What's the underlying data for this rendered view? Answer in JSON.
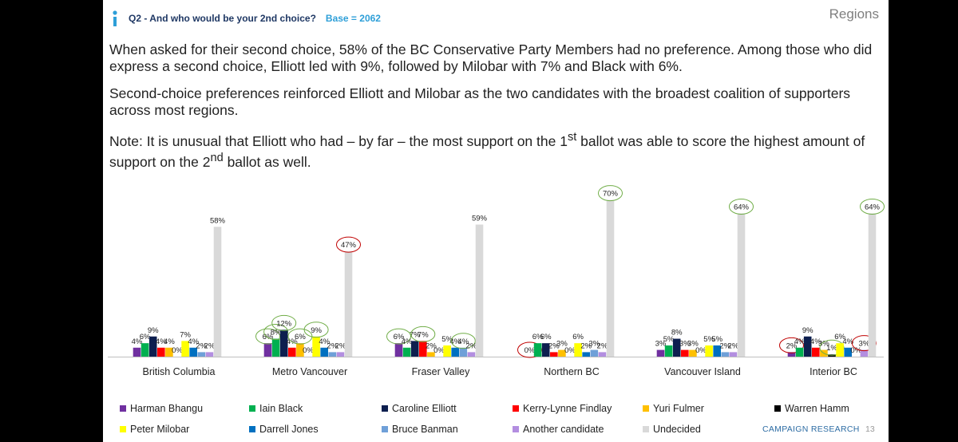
{
  "header": {
    "question": "Q2 - And who would be your 2nd choice?",
    "base": "Base = 2062",
    "section": "Regions"
  },
  "body": {
    "p1": "When asked for their second choice, 58% of the BC Conservative Party Members had no preference.  Among those who did express a second choice, Elliott led with 9%, followed by Milobar with 7% and Black with 6%.",
    "p2": "Second-choice preferences reinforced Elliott and Milobar as the two candidates with the broadest coalition of supporters across most regions.",
    "p3_a": "Note:  It is unusual that Elliott who had – by far – the most support on the 1",
    "p3_sup1": "st",
    "p3_b": " ballot was able to score the highest amount of support on the 2",
    "p3_sup2": "nd",
    "p3_c": " ballot as well."
  },
  "colors": {
    "accent_text": "#1f3864",
    "base_text": "#2e9fd8",
    "circle_green": "#70ad47",
    "circle_red": "#c00000"
  },
  "chart_data": {
    "type": "bar",
    "categories": [
      "British Columbia",
      "Metro Vancouver",
      "Fraser Valley",
      "Northern BC",
      "Vancouver Island",
      "Interior BC"
    ],
    "series": [
      {
        "name": "Harman Bhangu",
        "color": "#7030a0",
        "values": [
          4,
          6,
          6,
          0,
          3,
          2
        ]
      },
      {
        "name": "Iain Black",
        "color": "#00b050",
        "values": [
          6,
          8,
          4,
          6,
          5,
          4
        ]
      },
      {
        "name": "Caroline Elliott",
        "color": "#0d1f4f",
        "values": [
          9,
          12,
          7,
          6,
          8,
          9
        ]
      },
      {
        "name": "Kerry-Lynne Findlay",
        "color": "#ff0000",
        "values": [
          4,
          4,
          7,
          2,
          3,
          4
        ]
      },
      {
        "name": "Yuri Fulmer",
        "color": "#ffc000",
        "values": [
          4,
          6,
          2,
          3,
          3,
          3
        ]
      },
      {
        "name": "Warren Hamm",
        "color": "#000000",
        "values": [
          0,
          0,
          0,
          0,
          0,
          1
        ]
      },
      {
        "name": "Peter Milobar",
        "color": "#ffff00",
        "values": [
          7,
          9,
          5,
          6,
          5,
          6
        ]
      },
      {
        "name": "Darrell Jones",
        "color": "#0070c0",
        "values": [
          4,
          4,
          4,
          2,
          5,
          4
        ]
      },
      {
        "name": "Bruce Banman",
        "color": "#6fa0d8",
        "values": [
          2,
          2,
          4,
          3,
          2,
          0
        ]
      },
      {
        "name": "Another candidate",
        "color": "#b38ee0",
        "values": [
          2,
          2,
          2,
          2,
          2,
          3
        ]
      },
      {
        "name": "Undecided",
        "color": "#d9d9d9",
        "values": [
          58,
          47,
          59,
          70,
          64,
          64
        ]
      }
    ],
    "value_suffix": "%",
    "ylim": [
      0,
      72
    ],
    "highlights": [
      {
        "group": 1,
        "series": 0,
        "color": "green"
      },
      {
        "group": 1,
        "series": 1,
        "color": "green"
      },
      {
        "group": 1,
        "series": 2,
        "color": "green"
      },
      {
        "group": 1,
        "series": 4,
        "color": "green"
      },
      {
        "group": 1,
        "series": 6,
        "color": "green"
      },
      {
        "group": 1,
        "series": 10,
        "color": "red"
      },
      {
        "group": 2,
        "series": 0,
        "color": "green"
      },
      {
        "group": 2,
        "series": 3,
        "color": "green"
      },
      {
        "group": 2,
        "series": 8,
        "color": "green"
      },
      {
        "group": 3,
        "series": 0,
        "color": "red"
      },
      {
        "group": 3,
        "series": 10,
        "color": "green"
      },
      {
        "group": 4,
        "series": 10,
        "color": "green"
      },
      {
        "group": 5,
        "series": 0,
        "color": "red"
      },
      {
        "group": 5,
        "series": 5,
        "color": "green"
      },
      {
        "group": 5,
        "series": 9,
        "color": "red"
      },
      {
        "group": 5,
        "series": 10,
        "color": "green"
      }
    ],
    "legend_position": "bottom"
  },
  "footer": {
    "brand": "CAMPAIGN RESEARCH",
    "page": "13"
  }
}
